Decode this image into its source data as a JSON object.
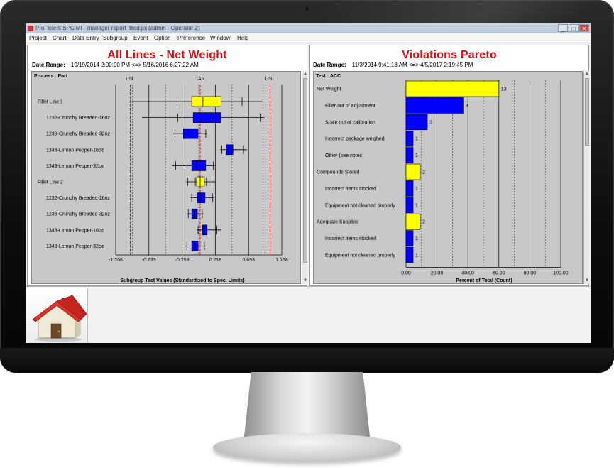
{
  "window": {
    "title": "ProFicient SPC MI - manager report_tiled.jpj (admin - Operator 2)",
    "buttons": [
      "_",
      "□",
      "✕"
    ]
  },
  "menu": [
    "Project",
    "Chart",
    "Data Entry",
    "Subgroup",
    "Event",
    "Option",
    "Preference",
    "Window",
    "Help"
  ],
  "left_panel": {
    "title": "All Lines - Net Weight",
    "date_range_label": "Date Range:",
    "date_range_value": "10/19/2014   2:00:00 PM <=> 5/16/2016   6:27:22 AM",
    "group_label": "Process : Part",
    "spec_labels": [
      "LSL",
      "TAR",
      "USL"
    ],
    "x_axis_title": "Subgroup Test Values (Standardized to Spec. Limits)",
    "x_ticks": [
      "-1.208",
      "-0.733",
      "-0.258",
      "0.218",
      "0.693",
      "1.168"
    ],
    "rows": [
      {
        "label": "Fillet Line 1",
        "color": "#ffff00",
        "q1": -0.12,
        "median": 0.04,
        "q3": 0.3,
        "min": -0.98,
        "max": 0.9,
        "whisker_ticks": [
          -0.33,
          0.6
        ]
      },
      {
        "label": "1232-Crunchy Breaded-16oz",
        "color": "#0000ff",
        "q1": -0.1,
        "median": 0.16,
        "q3": 0.3,
        "min": -0.83,
        "max": 0.92,
        "whisker_ticks": [
          -0.32,
          0.86,
          0.87
        ]
      },
      {
        "label": "1236-Crunchy Breaded-32oz",
        "color": "#0000ff",
        "q1": -0.24,
        "median": -0.17,
        "q3": -0.03,
        "min": -0.38,
        "max": 0.1,
        "whisker_ticks": [
          -0.36,
          0.08
        ]
      },
      {
        "label": "1348-Lemon Pepper-16oz",
        "color": "#0000ff",
        "q1": 0.37,
        "median": 0.4,
        "q3": 0.47,
        "min": 0.29,
        "max": 0.67,
        "whisker_ticks": [
          0.31,
          0.62
        ]
      },
      {
        "label": "1349-Lemon Pepper-32oz",
        "color": "#0000ff",
        "q1": -0.12,
        "median": -0.05,
        "q3": 0.08,
        "min": -0.4,
        "max": 0.21,
        "whisker_ticks": [
          -0.35,
          -0.26,
          0.19
        ]
      },
      {
        "label": "Fillet Line 2",
        "color": "#ffff00",
        "q1": -0.05,
        "median": 0.0,
        "q3": 0.06,
        "min": -0.2,
        "max": 0.22,
        "whisker_ticks": [
          -0.18,
          -0.07,
          0.09,
          0.2
        ]
      },
      {
        "label": "1232-Crunchy Breaded-16oz",
        "color": "#0000ff",
        "q1": -0.04,
        "median": 0.01,
        "q3": 0.07,
        "min": -0.14,
        "max": 0.2,
        "whisker_ticks": [
          -0.12,
          0.18
        ]
      },
      {
        "label": "1236-Crunchy Breaded-32oz",
        "color": "#0000ff",
        "q1": -0.12,
        "median": -0.08,
        "q3": -0.04,
        "min": -0.19,
        "max": 0.05,
        "whisker_ticks": [
          -0.17,
          0.03
        ]
      },
      {
        "label": "1348-Lemon Pepper-16oz",
        "color": "#0000ff",
        "q1": 0.03,
        "median": 0.06,
        "q3": 0.1,
        "min": -0.05,
        "max": 0.3,
        "whisker_ticks": [
          -0.03,
          0.24
        ]
      },
      {
        "label": "1349-Lemon Pepper-32oz",
        "color": "#0000ff",
        "q1": -0.12,
        "median": -0.08,
        "q3": -0.03,
        "min": -0.22,
        "max": 0.08,
        "whisker_ticks": [
          -0.19,
          -0.11,
          0.06
        ]
      }
    ]
  },
  "right_panel": {
    "title": "Violations Pareto",
    "date_range_label": "Date Range:",
    "date_range_value": "11/3/2014   9:41:18 AM <=> 4/5/2017   2:19:45 PM",
    "group_label": "Test : ACC",
    "x_axis_title": "Percent of Total (Count)",
    "x_ticks": [
      "0.00",
      "20.00",
      "40.00",
      "60.00",
      "80.00",
      "100.00"
    ]
  },
  "chart_data": [
    {
      "type": "box",
      "title": "All Lines - Net Weight",
      "xlabel": "Subgroup Test Values (Standardized to Spec. Limits)",
      "xlim": [
        -1.208,
        1.168
      ],
      "reference_lines": {
        "LSL": -1.0,
        "TAR": 0.0,
        "USL": 1.0
      },
      "categories": [
        "Fillet Line 1",
        "1232-Crunchy Breaded-16oz",
        "1236-Crunchy Breaded-32oz",
        "1348-Lemon Pepper-16oz",
        "1349-Lemon Pepper-32oz",
        "Fillet Line 2",
        "1232-Crunchy Breaded-16oz",
        "1236-Crunchy Breaded-32oz",
        "1348-Lemon Pepper-16oz",
        "1349-Lemon Pepper-32oz"
      ]
    },
    {
      "type": "bar",
      "orientation": "horizontal",
      "title": "Violations Pareto",
      "xlabel": "Percent of Total (Count)",
      "xlim": [
        0,
        100
      ],
      "categories": [
        "Net Weight",
        "Filler out of adjustment",
        "Scale out of calibration",
        "Incorrect package weighed",
        "Other (see notes)",
        "Compounds Stored",
        "Incorrect items stocked",
        "Equipment not cleaned properly",
        "Adequate Supplies",
        "Incorrect items stocked",
        "Equipment not cleaned properly"
      ],
      "indent": [
        0,
        1,
        1,
        1,
        1,
        0,
        1,
        1,
        0,
        1,
        1
      ],
      "values": [
        60.0,
        36.9,
        13.8,
        4.6,
        4.6,
        9.2,
        4.6,
        4.6,
        9.2,
        4.6,
        4.6
      ],
      "counts": [
        "13",
        "8",
        "3",
        "1",
        "1",
        "2",
        "1",
        "1",
        "2",
        "1",
        "1"
      ],
      "colors": [
        "#ffff00",
        "#0000ff",
        "#0000ff",
        "#0000ff",
        "#0000ff",
        "#ffff00",
        "#0000ff",
        "#0000ff",
        "#ffff00",
        "#0000ff",
        "#0000ff"
      ]
    }
  ]
}
